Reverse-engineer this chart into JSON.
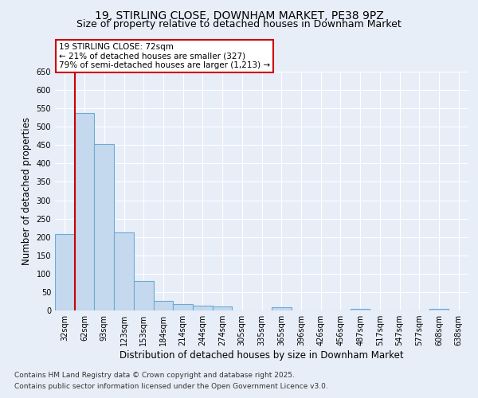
{
  "title1": "19, STIRLING CLOSE, DOWNHAM MARKET, PE38 9PZ",
  "title2": "Size of property relative to detached houses in Downham Market",
  "xlabel": "Distribution of detached houses by size in Downham Market",
  "ylabel": "Number of detached properties",
  "footer1": "Contains HM Land Registry data © Crown copyright and database right 2025.",
  "footer2": "Contains public sector information licensed under the Open Government Licence v3.0.",
  "bin_labels": [
    "32sqm",
    "62sqm",
    "93sqm",
    "123sqm",
    "153sqm",
    "184sqm",
    "214sqm",
    "244sqm",
    "274sqm",
    "305sqm",
    "335sqm",
    "365sqm",
    "396sqm",
    "426sqm",
    "456sqm",
    "487sqm",
    "517sqm",
    "547sqm",
    "577sqm",
    "608sqm",
    "638sqm"
  ],
  "bar_heights": [
    207,
    537,
    453,
    213,
    80,
    26,
    17,
    13,
    10,
    0,
    0,
    8,
    0,
    0,
    0,
    5,
    0,
    0,
    0,
    4,
    0
  ],
  "bar_color": "#c5d9ee",
  "bar_edge_color": "#6baad4",
  "vline_color": "#cc0000",
  "ylim": [
    0,
    650
  ],
  "yticks": [
    0,
    50,
    100,
    150,
    200,
    250,
    300,
    350,
    400,
    450,
    500,
    550,
    600,
    650
  ],
  "annotation_text": "19 STIRLING CLOSE: 72sqm\n← 21% of detached houses are smaller (327)\n79% of semi-detached houses are larger (1,213) →",
  "annotation_box_color": "#ffffff",
  "annotation_box_edge": "#cc0000",
  "bg_color": "#e8eef8",
  "plot_bg_color": "#e8eef8",
  "grid_color": "#ffffff",
  "title_fontsize": 10,
  "subtitle_fontsize": 9,
  "axis_label_fontsize": 8.5,
  "tick_fontsize": 7,
  "footer_fontsize": 6.5,
  "annotation_fontsize": 7.5
}
